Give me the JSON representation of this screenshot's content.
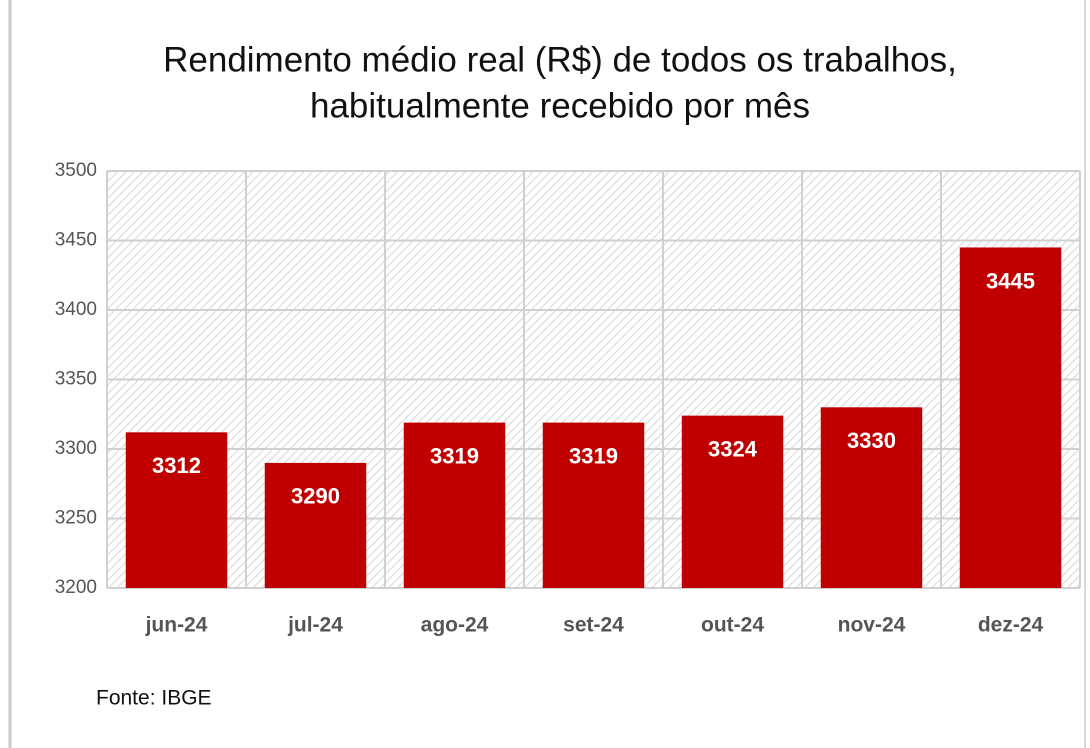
{
  "chart_data": {
    "type": "bar",
    "title": [
      "Rendimento médio real (R$) de todos os trabalhos,",
      "habitualmente recebido por mês"
    ],
    "categories": [
      "jun-24",
      "jul-24",
      "ago-24",
      "set-24",
      "out-24",
      "nov-24",
      "dez-24"
    ],
    "values": [
      3312,
      3290,
      3319,
      3319,
      3324,
      3330,
      3445
    ],
    "color": "#c00000",
    "ylim": [
      3200,
      3500
    ],
    "yticks": [
      3200,
      3250,
      3300,
      3350,
      3400,
      3450,
      3500
    ],
    "grid": true,
    "source": "Fonte: IBGE"
  }
}
